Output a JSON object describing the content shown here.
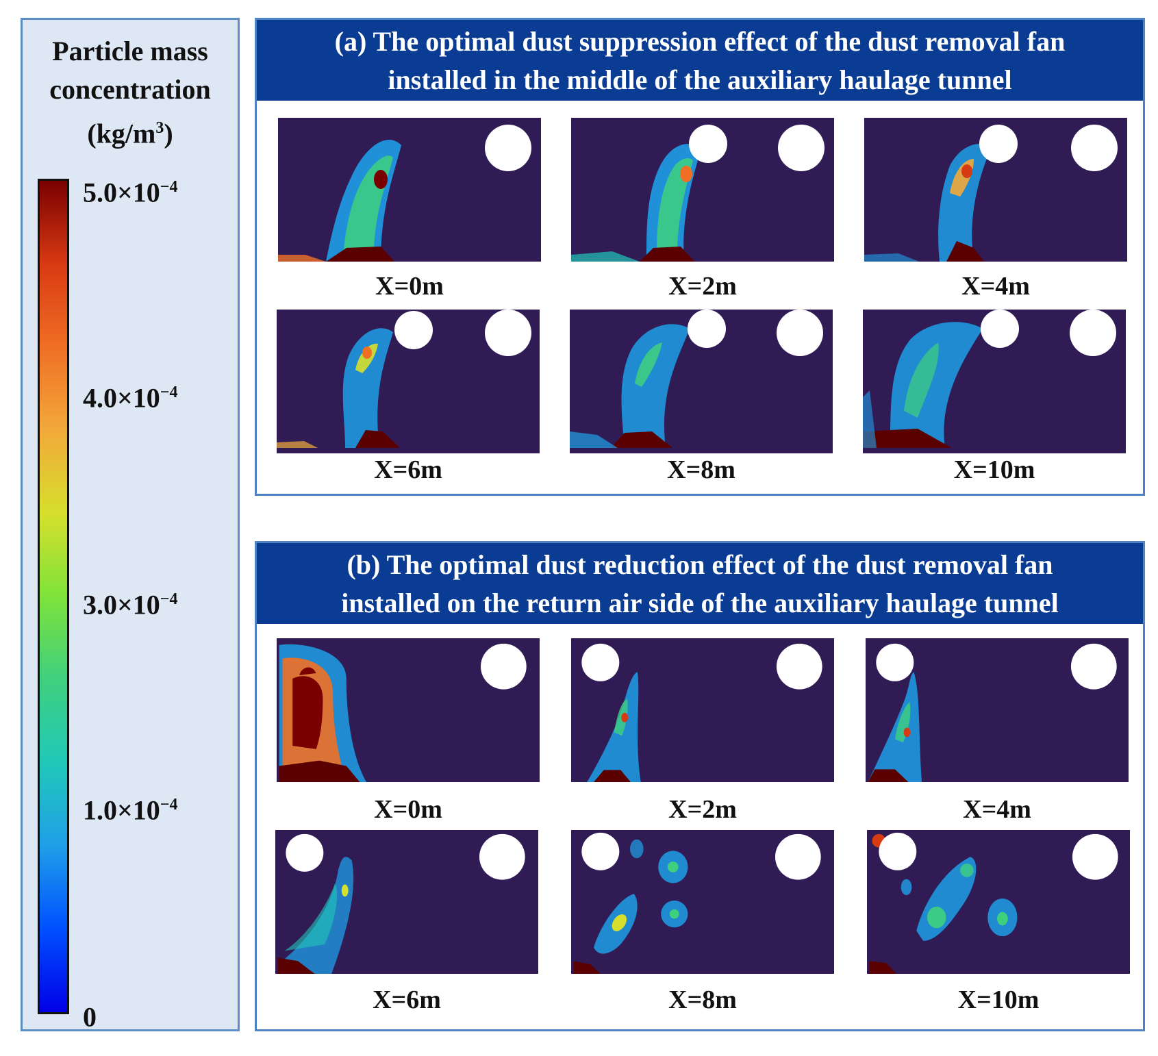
{
  "legend": {
    "title_lines": [
      "Particle mass",
      "concentration",
      "(kg/m",
      "3",
      ")"
    ],
    "ticks": [
      {
        "mantissa": "5.0×10",
        "exp": "−4"
      },
      {
        "mantissa": "4.0×10",
        "exp": "−4"
      },
      {
        "mantissa": "3.0×10",
        "exp": "−4"
      },
      {
        "mantissa": "1.0×10",
        "exp": "−4"
      },
      {
        "mantissa": "0",
        "exp": ""
      }
    ],
    "colors": [
      "#0000e6",
      "#1f9fe8",
      "#3fd07e",
      "#d6df2c",
      "#f06f25",
      "#7a0000"
    ]
  },
  "panel_a": {
    "title_line1": "(a) The optimal dust suppression effect of the dust removal fan",
    "title_line2": "installed in the middle of the auxiliary haulage tunnel",
    "captions": [
      "X=0m",
      "X=2m",
      "X=4m",
      "X=6m",
      "X=8m",
      "X=10m"
    ]
  },
  "panel_b": {
    "title_line1": "(b) The optimal dust reduction effect of the dust removal fan",
    "title_line2": "installed on the return air side of the auxiliary haulage tunnel",
    "captions": [
      "X=0m",
      "X=2m",
      "X=4m",
      "X=6m",
      "X=8m",
      "X=10m"
    ]
  },
  "colors": {
    "background_field": "#311b55",
    "header_bg": "#0b3c94",
    "panel_border": "#4f82c2"
  }
}
